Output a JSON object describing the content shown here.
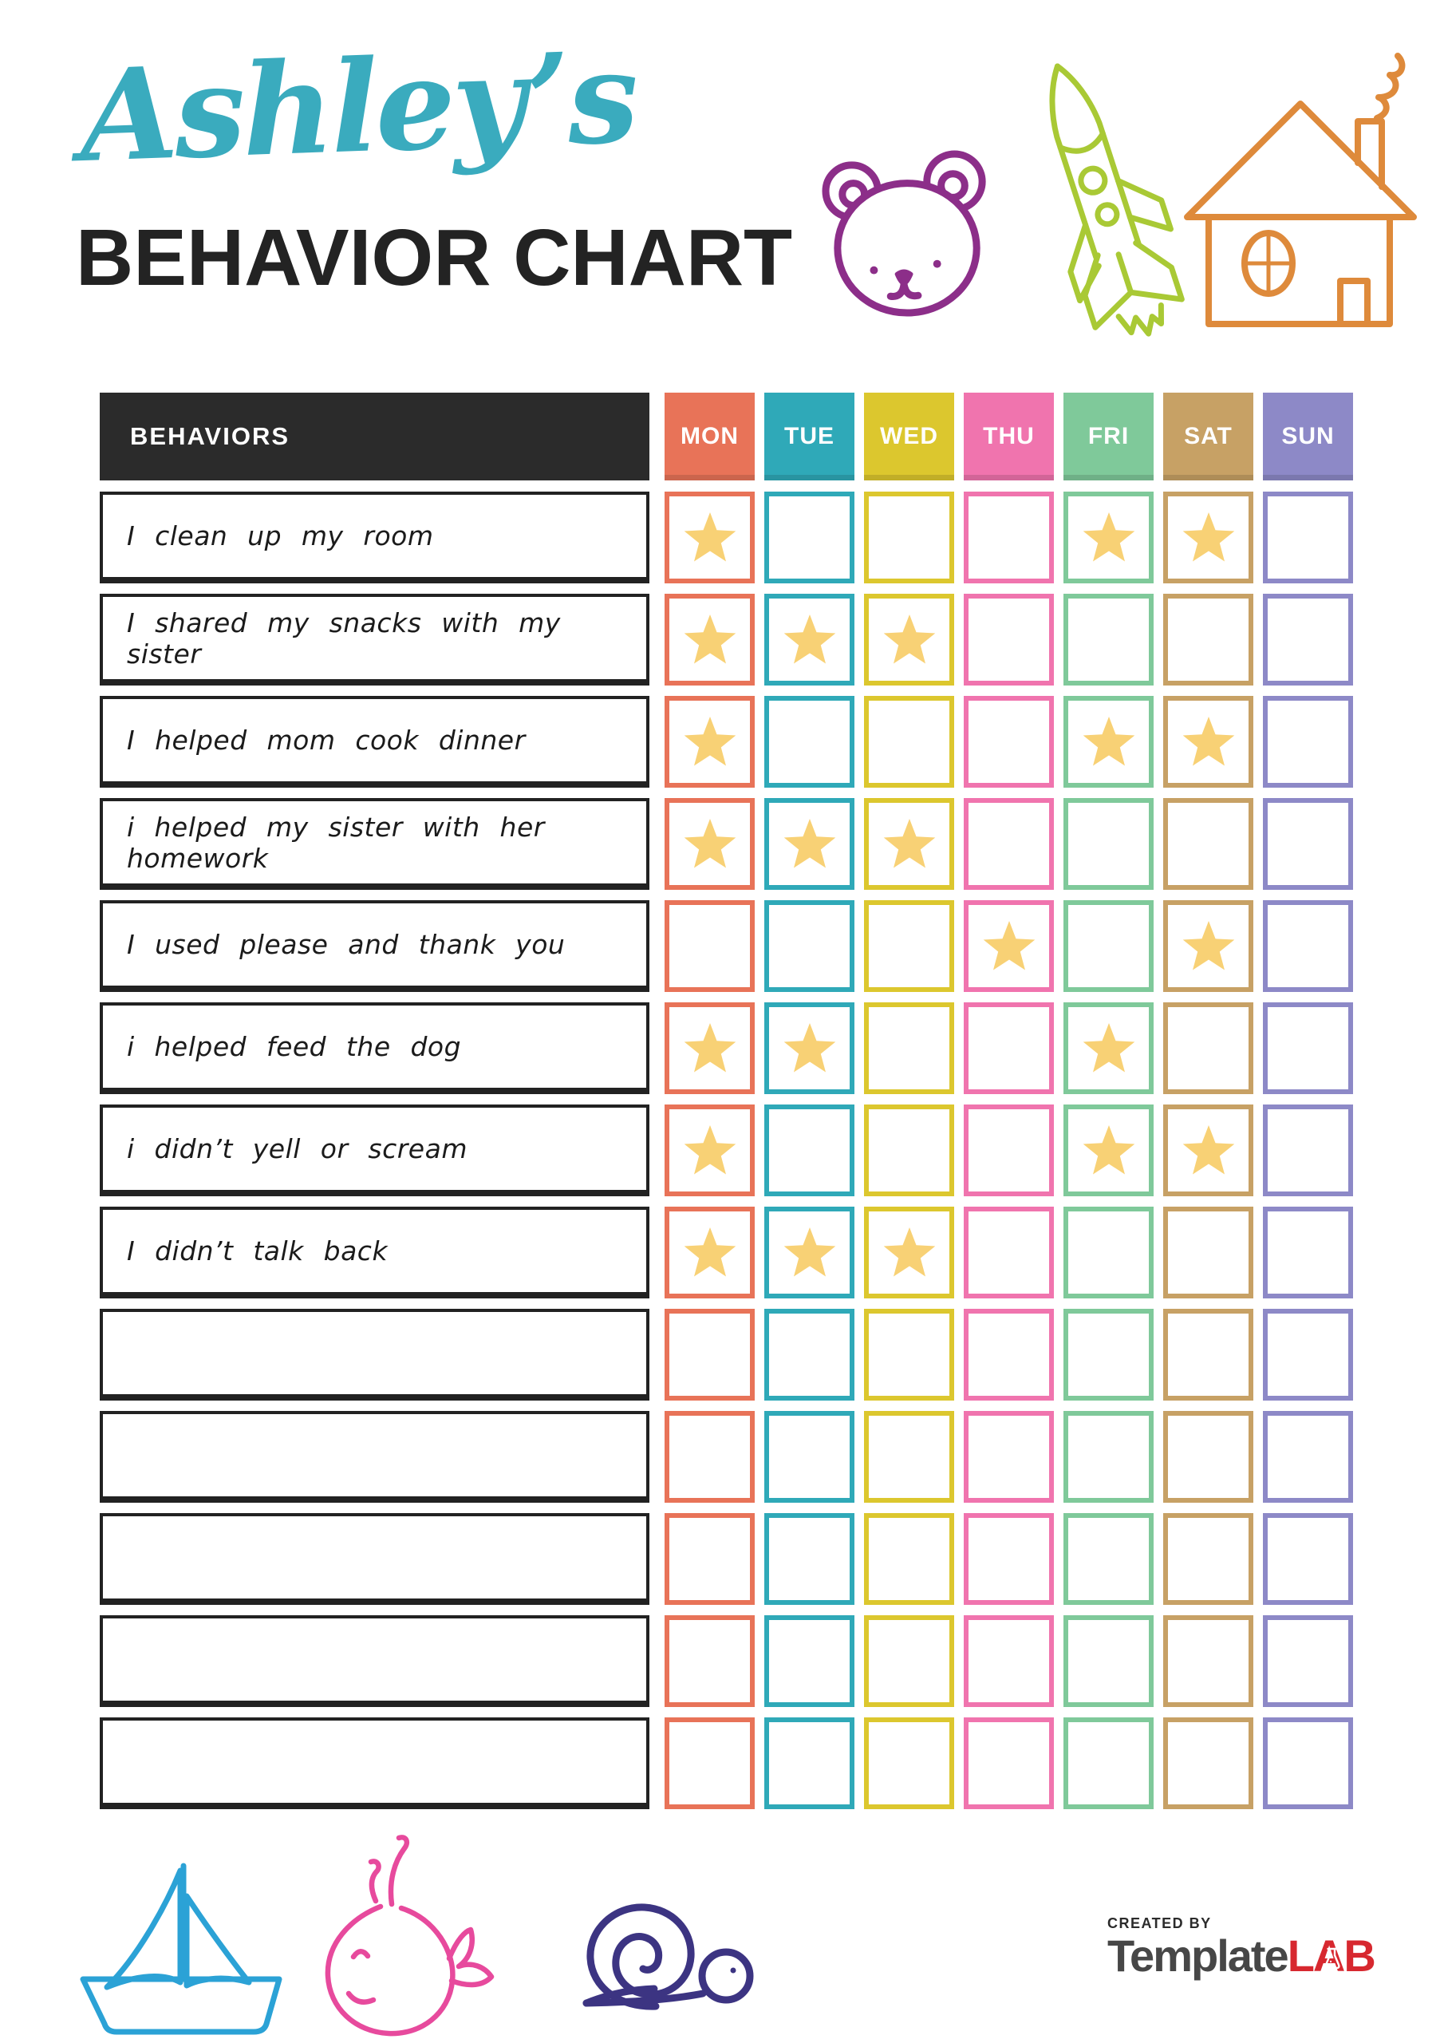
{
  "header": {
    "child_name": "Ashley’s",
    "title": "BEHAVIOR CHART",
    "name_color": "#3AABBE",
    "title_color": "#232323"
  },
  "doodles": {
    "bear_color": "#8C2E89",
    "rocket_color": "#A9C935",
    "house_color": "#DE8A3B",
    "sailboat_color": "#2BA2D6",
    "whale_color": "#E74A9D",
    "snail_color": "#3C3482"
  },
  "table": {
    "behaviors_header": "BEHAVIORS",
    "header_bg": "#2B2B2B",
    "header_text_color": "#FFFFFF",
    "row_border_color": "#222222",
    "star_color": "#F8D175",
    "days": [
      {
        "label": "MON",
        "color": "#E87358"
      },
      {
        "label": "TUE",
        "color": "#2FA9B8"
      },
      {
        "label": "WED",
        "color": "#DCC72E"
      },
      {
        "label": "THU",
        "color": "#F074AE"
      },
      {
        "label": "FRI",
        "color": "#7FC99A"
      },
      {
        "label": "SAT",
        "color": "#C7A165"
      },
      {
        "label": "SUN",
        "color": "#8D89C7"
      }
    ],
    "rows": [
      {
        "label": "I clean up my room",
        "stars": [
          1,
          0,
          0,
          0,
          1,
          1,
          0
        ]
      },
      {
        "label": "I shared my snacks with my sister",
        "stars": [
          1,
          1,
          1,
          0,
          0,
          0,
          0
        ]
      },
      {
        "label": "I helped mom cook dinner",
        "stars": [
          1,
          0,
          0,
          0,
          1,
          1,
          0
        ]
      },
      {
        "label": "i helped my sister with her homework",
        "stars": [
          1,
          1,
          1,
          0,
          0,
          0,
          0
        ]
      },
      {
        "label": "I used please and thank you",
        "stars": [
          0,
          0,
          0,
          1,
          0,
          1,
          0
        ]
      },
      {
        "label": "i helped feed the dog",
        "stars": [
          1,
          1,
          0,
          0,
          1,
          0,
          0
        ]
      },
      {
        "label": "i didn’t yell or scream",
        "stars": [
          1,
          0,
          0,
          0,
          1,
          1,
          0
        ]
      },
      {
        "label": "I didn’t talk back",
        "stars": [
          1,
          1,
          1,
          0,
          0,
          0,
          0
        ]
      },
      {
        "label": "",
        "stars": [
          0,
          0,
          0,
          0,
          0,
          0,
          0
        ]
      },
      {
        "label": "",
        "stars": [
          0,
          0,
          0,
          0,
          0,
          0,
          0
        ]
      },
      {
        "label": "",
        "stars": [
          0,
          0,
          0,
          0,
          0,
          0,
          0
        ]
      },
      {
        "label": "",
        "stars": [
          0,
          0,
          0,
          0,
          0,
          0,
          0
        ]
      },
      {
        "label": "",
        "stars": [
          0,
          0,
          0,
          0,
          0,
          0,
          0
        ]
      }
    ]
  },
  "footer": {
    "created_by": "CREATED BY",
    "brand_name": "Template",
    "brand_suffix": "LAB",
    "brand_color": "#474747",
    "brand_accent_color": "#D7282F"
  }
}
